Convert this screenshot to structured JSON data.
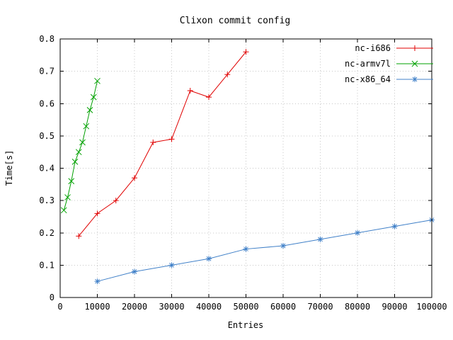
{
  "page": {
    "background": "#ffffff"
  },
  "chart_data": {
    "type": "line",
    "title": "Clixon commit config",
    "xlabel": "Entries",
    "ylabel": "Time[s]",
    "xlim": [
      0,
      100000
    ],
    "ylim": [
      0,
      0.8
    ],
    "xticks": [
      0,
      10000,
      20000,
      30000,
      40000,
      50000,
      60000,
      70000,
      80000,
      90000,
      100000
    ],
    "xtick_labels": [
      "0",
      "10000",
      "20000",
      "30000",
      "40000",
      "50000",
      "60000",
      "70000",
      "80000",
      "90000",
      "100000"
    ],
    "yticks": [
      0,
      0.1,
      0.2,
      0.3,
      0.4,
      0.5,
      0.6,
      0.7,
      0.8
    ],
    "ytick_labels": [
      "0",
      "0.1",
      "0.2",
      "0.3",
      "0.4",
      "0.5",
      "0.6",
      "0.7",
      "0.8"
    ],
    "grid": true,
    "grid_color": "#c8c8c8",
    "border_color": "#000000",
    "legend_position": "top-right-inside",
    "series": [
      {
        "name": "nc-i686",
        "color": "#e00000",
        "marker": "plus",
        "x": [
          5000,
          10000,
          15000,
          20000,
          25000,
          30000,
          35000,
          40000,
          45000,
          50000
        ],
        "y": [
          0.19,
          0.26,
          0.3,
          0.37,
          0.48,
          0.49,
          0.64,
          0.62,
          0.69,
          0.76
        ]
      },
      {
        "name": "nc-armv7l",
        "color": "#00a000",
        "marker": "x",
        "x": [
          1000,
          2000,
          3000,
          4000,
          5000,
          6000,
          7000,
          8000,
          9000,
          10000
        ],
        "y": [
          0.27,
          0.31,
          0.36,
          0.42,
          0.45,
          0.48,
          0.53,
          0.58,
          0.62,
          0.67
        ]
      },
      {
        "name": "nc-x86_64",
        "color": "#4080c8",
        "marker": "asterisk",
        "x": [
          10000,
          20000,
          30000,
          40000,
          50000,
          60000,
          70000,
          80000,
          90000,
          100000
        ],
        "y": [
          0.05,
          0.08,
          0.1,
          0.12,
          0.15,
          0.16,
          0.18,
          0.2,
          0.22,
          0.24
        ]
      }
    ]
  }
}
